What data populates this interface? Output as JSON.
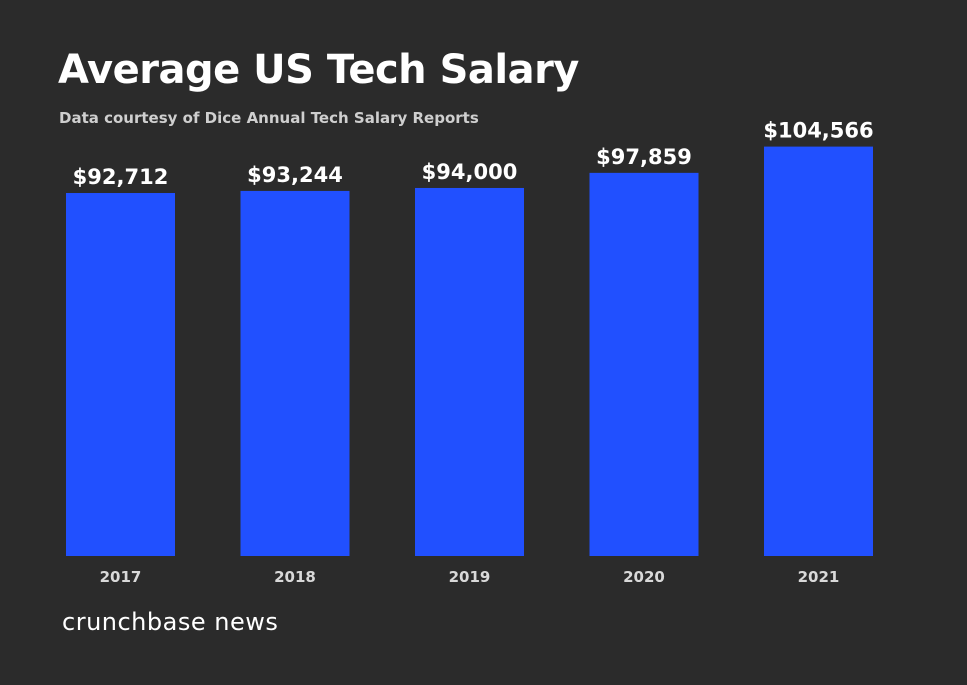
{
  "header": {
    "title": "Average US Tech Salary",
    "subtitle": "Data courtesy of Dice Annual Tech Salary Reports"
  },
  "brand": {
    "logo_text": "crunchbase news"
  },
  "colors": {
    "background": "#2b2b2b",
    "bar": "#2150ff",
    "text": "#ffffff",
    "tick_text": "#d9d9d9"
  },
  "chart_data": {
    "type": "bar",
    "title": "Average US Tech Salary",
    "subtitle": "Data courtesy of Dice Annual Tech Salary Reports",
    "categories": [
      "2017",
      "2018",
      "2019",
      "2020",
      "2021"
    ],
    "values": [
      92712,
      93244,
      94000,
      97859,
      104566
    ],
    "data_labels": [
      "$92,712",
      "$93,244",
      "$94,000",
      "$97,859",
      "$104,566"
    ],
    "xlabel": "",
    "ylabel": "",
    "ylim": [
      0,
      118000
    ],
    "grid": false,
    "legend": "none"
  }
}
